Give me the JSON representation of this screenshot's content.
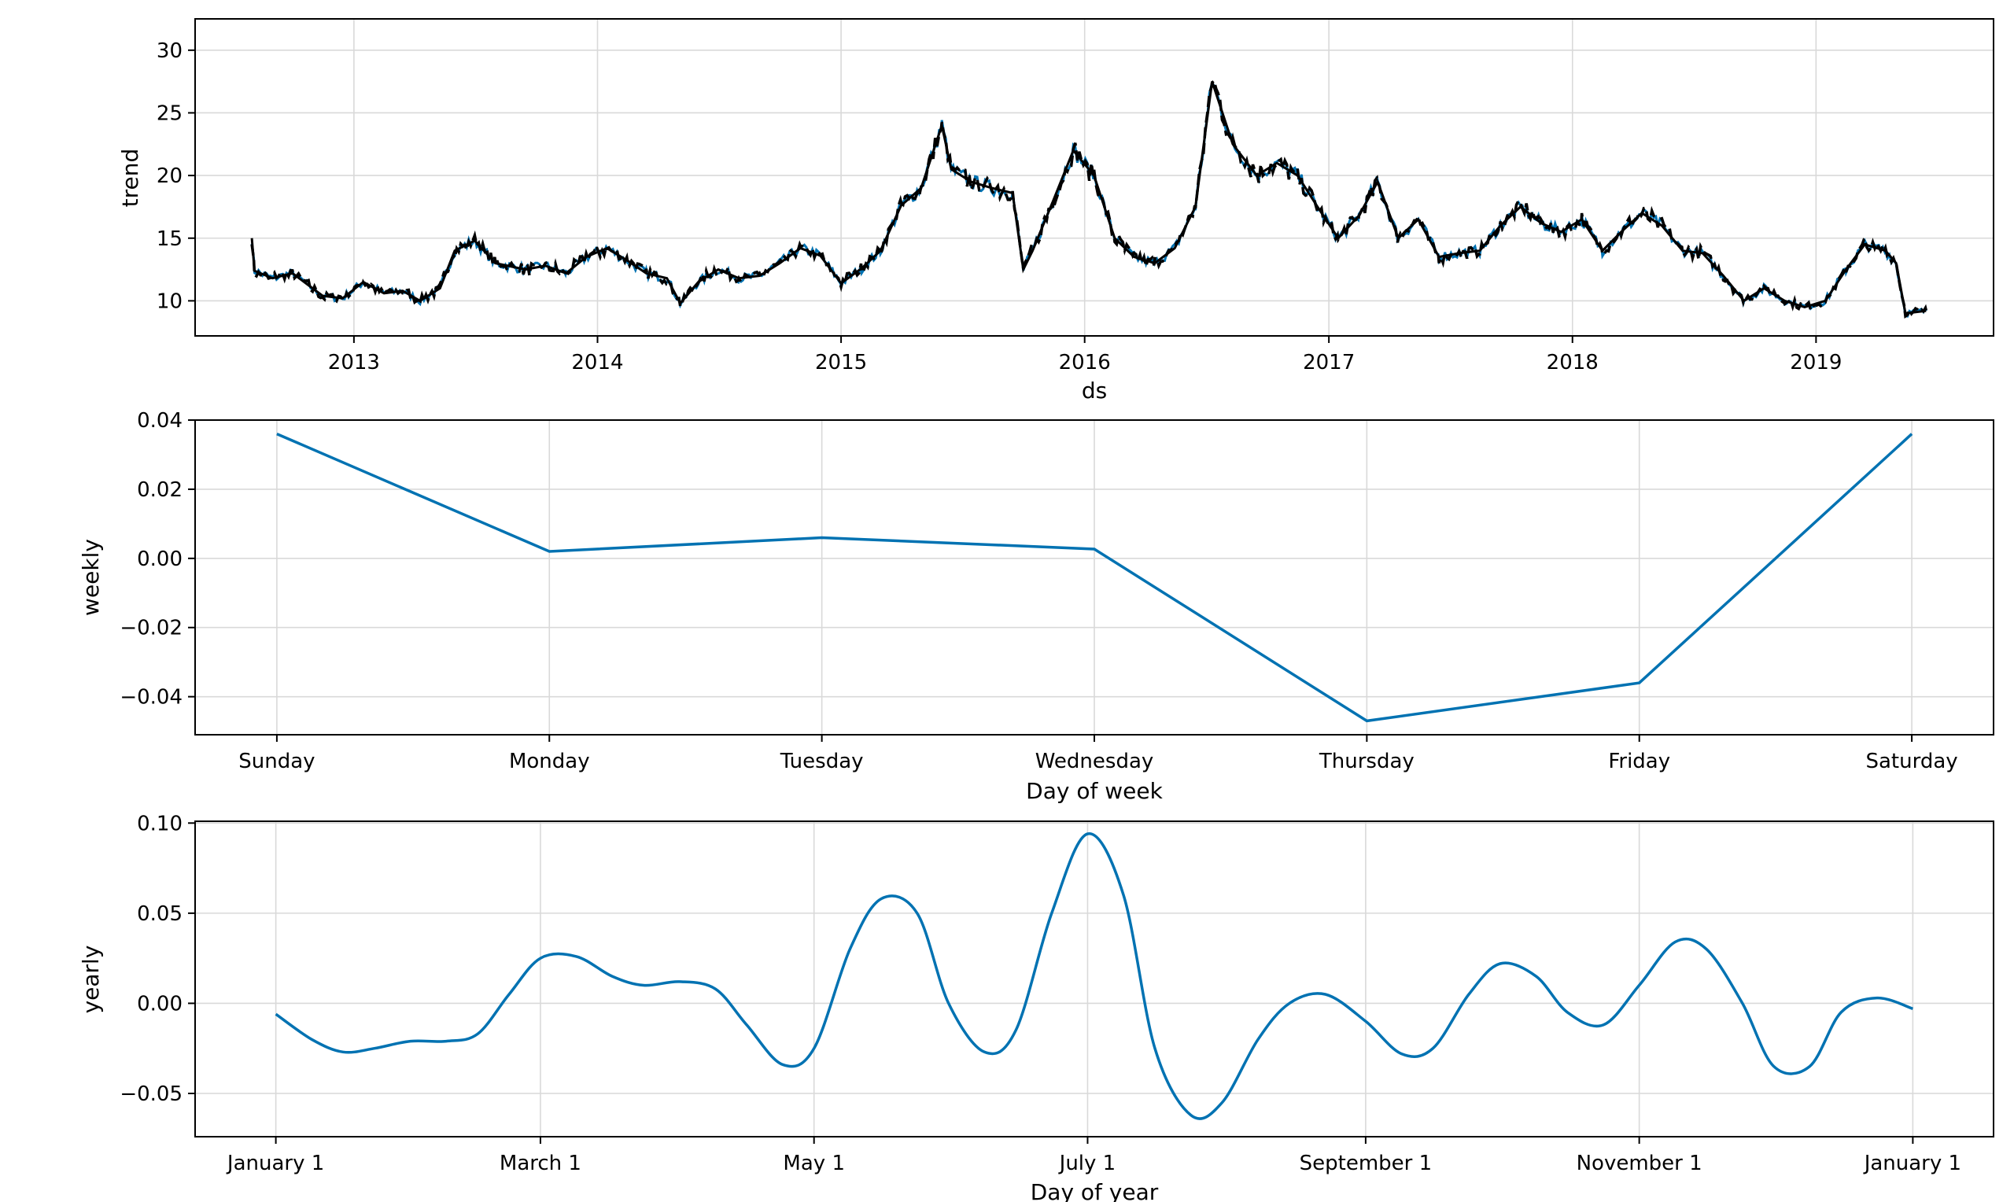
{
  "chart_data": [
    {
      "type": "line",
      "title": "",
      "xlabel": "ds",
      "ylabel": "trend",
      "x_tick_labels": [
        "2013",
        "2014",
        "2015",
        "2016",
        "2017",
        "2018",
        "2019"
      ],
      "x_tick_values": [
        "2013-01-01",
        "2014-01-01",
        "2015-01-01",
        "2016-01-01",
        "2017-01-01",
        "2018-01-01",
        "2019-01-01"
      ],
      "y_tick_labels": [
        "10",
        "15",
        "20",
        "25",
        "30"
      ],
      "y_tick_values": [
        10,
        15,
        20,
        25,
        30
      ],
      "xlim": [
        "2012-05-08",
        "2019-09-24"
      ],
      "ylim": [
        7.2,
        32.5
      ],
      "grid": true,
      "colors": {
        "trend": "#000000",
        "fitted": "#0072b2"
      },
      "series": [
        {
          "style": "solid-black",
          "x": [
            "2012-08-01",
            "2012-08-05",
            "2012-09-01",
            "2012-10-01",
            "2012-11-15",
            "2012-12-15",
            "2013-01-15",
            "2013-02-15",
            "2013-03-15",
            "2013-04-10",
            "2013-05-10",
            "2013-06-01",
            "2013-07-01",
            "2013-08-01",
            "2013-09-15",
            "2013-10-15",
            "2013-11-15",
            "2013-12-15",
            "2014-01-15",
            "2014-02-15",
            "2014-03-15",
            "2014-04-15",
            "2014-05-05",
            "2014-06-01",
            "2014-07-01",
            "2014-08-01",
            "2014-09-01",
            "2014-10-01",
            "2014-11-01",
            "2014-12-01",
            "2015-01-01",
            "2015-02-01",
            "2015-03-01",
            "2015-04-01",
            "2015-05-01",
            "2015-06-01",
            "2015-06-15",
            "2015-07-15",
            "2015-08-15",
            "2015-09-15",
            "2015-10-01",
            "2015-10-15",
            "2015-11-15",
            "2015-12-15",
            "2016-01-15",
            "2016-02-15",
            "2016-03-15",
            "2016-04-15",
            "2016-05-15",
            "2016-06-15",
            "2016-07-10",
            "2016-08-10",
            "2016-09-15",
            "2016-10-15",
            "2016-11-15",
            "2016-12-15",
            "2017-01-15",
            "2017-02-15",
            "2017-03-15",
            "2017-04-15",
            "2017-05-15",
            "2017-06-15",
            "2017-07-15",
            "2017-08-15",
            "2017-09-15",
            "2017-10-15",
            "2017-11-15",
            "2017-12-15",
            "2018-01-15",
            "2018-02-15",
            "2018-03-15",
            "2018-04-15",
            "2018-05-15",
            "2018-06-15",
            "2018-07-15",
            "2018-08-15",
            "2018-09-15",
            "2018-10-15",
            "2018-11-15",
            "2018-12-15",
            "2019-01-15",
            "2019-02-15",
            "2019-03-15",
            "2019-04-15",
            "2019-05-01",
            "2019-05-15",
            "2019-06-15"
          ],
          "y": [
            15.0,
            12.4,
            11.8,
            12.2,
            10.4,
            10.2,
            11.5,
            10.6,
            10.8,
            10.0,
            11.0,
            14.0,
            14.8,
            13.0,
            12.5,
            12.8,
            12.2,
            13.5,
            14.2,
            13.2,
            12.2,
            11.8,
            9.8,
            11.5,
            12.5,
            11.8,
            12.0,
            13.0,
            14.2,
            13.6,
            11.4,
            12.6,
            14.0,
            17.6,
            19.0,
            24.0,
            20.5,
            19.5,
            19.0,
            18.6,
            12.5,
            14.0,
            18.0,
            22.0,
            20.0,
            15.0,
            13.5,
            13.0,
            14.2,
            17.5,
            27.5,
            22.5,
            20.0,
            21.0,
            20.0,
            17.5,
            15.0,
            16.8,
            19.5,
            15.0,
            16.5,
            13.5,
            13.8,
            14.0,
            16.0,
            17.5,
            16.2,
            15.5,
            16.5,
            14.0,
            15.5,
            17.0,
            16.0,
            14.0,
            13.8,
            12.0,
            10.0,
            11.0,
            10.0,
            9.5,
            10.0,
            12.5,
            14.5,
            14.0,
            13.0,
            9.0,
            9.2
          ]
        }
      ]
    },
    {
      "type": "line",
      "title": "",
      "xlabel": "Day of week",
      "ylabel": "weekly",
      "categories": [
        "Sunday",
        "Monday",
        "Tuesday",
        "Wednesday",
        "Thursday",
        "Friday",
        "Saturday"
      ],
      "y_tick_labels": [
        "−0.04",
        "−0.02",
        "0.00",
        "0.02",
        "0.04"
      ],
      "y_tick_values": [
        -0.04,
        -0.02,
        0.0,
        0.02,
        0.04
      ],
      "ylim": [
        -0.051,
        0.04
      ],
      "grid": true,
      "color": "#0072b2",
      "series": [
        {
          "values": [
            0.036,
            0.002,
            0.006,
            0.0027,
            -0.047,
            -0.036,
            0.036
          ]
        }
      ]
    },
    {
      "type": "line",
      "title": "",
      "xlabel": "Day of year",
      "ylabel": "yearly",
      "x_tick_labels": [
        "January 1",
        "March 1",
        "May 1",
        "July 1",
        "September 1",
        "November 1",
        "January 1"
      ],
      "x_tick_values": [
        0,
        59,
        120,
        181,
        243,
        304,
        365
      ],
      "y_tick_labels": [
        "−0.05",
        "0.00",
        "0.05",
        "0.10"
      ],
      "y_tick_values": [
        -0.05,
        0.0,
        0.05,
        0.1
      ],
      "xlim": [
        -18,
        383
      ],
      "ylim": [
        -0.074,
        0.101
      ],
      "grid": true,
      "color": "#0072b2",
      "series": [
        {
          "x": [
            0,
            8,
            15,
            22,
            30,
            38,
            45,
            52,
            59,
            67,
            75,
            82,
            90,
            98,
            105,
            113,
            120,
            128,
            135,
            143,
            150,
            158,
            165,
            173,
            181,
            189,
            196,
            204,
            211,
            219,
            226,
            234,
            243,
            251,
            258,
            266,
            273,
            281,
            288,
            296,
            304,
            312,
            319,
            327,
            334,
            342,
            349,
            357,
            365
          ],
          "y": [
            -0.006,
            -0.02,
            -0.027,
            -0.025,
            -0.021,
            -0.021,
            -0.017,
            0.005,
            0.025,
            0.026,
            0.015,
            0.01,
            0.012,
            0.008,
            -0.012,
            -0.034,
            -0.025,
            0.03,
            0.058,
            0.05,
            0.0,
            -0.027,
            -0.015,
            0.05,
            0.094,
            0.06,
            -0.025,
            -0.062,
            -0.055,
            -0.02,
            0.0,
            0.005,
            -0.01,
            -0.028,
            -0.025,
            0.005,
            0.022,
            0.015,
            -0.005,
            -0.012,
            0.01,
            0.034,
            0.03,
            0.0,
            -0.035,
            -0.035,
            -0.005,
            0.003,
            -0.003
          ]
        }
      ]
    }
  ]
}
